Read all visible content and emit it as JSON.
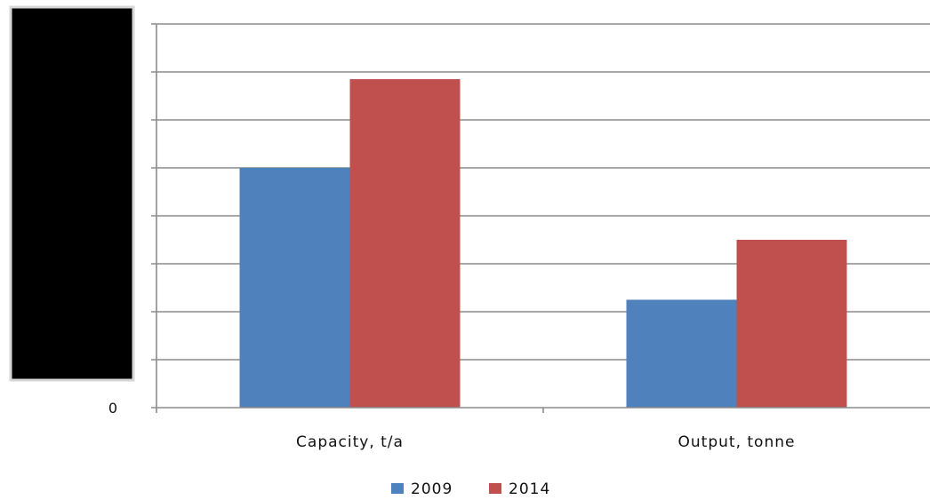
{
  "chart_data": {
    "type": "bar",
    "categories": [
      "Capacity, t/a",
      "Output, tonne"
    ],
    "series": [
      {
        "name": "2009",
        "values": [
          5.0,
          2.25
        ],
        "color": "#4f81bd"
      },
      {
        "name": "2014",
        "values": [
          6.85,
          3.5
        ],
        "color": "#c0504d"
      }
    ],
    "y_tick_labels": [
      "0"
    ],
    "ylim": [
      0,
      8
    ],
    "grid": true,
    "legend_position": "bottom",
    "title": "",
    "xlabel": "",
    "ylabel": ""
  }
}
